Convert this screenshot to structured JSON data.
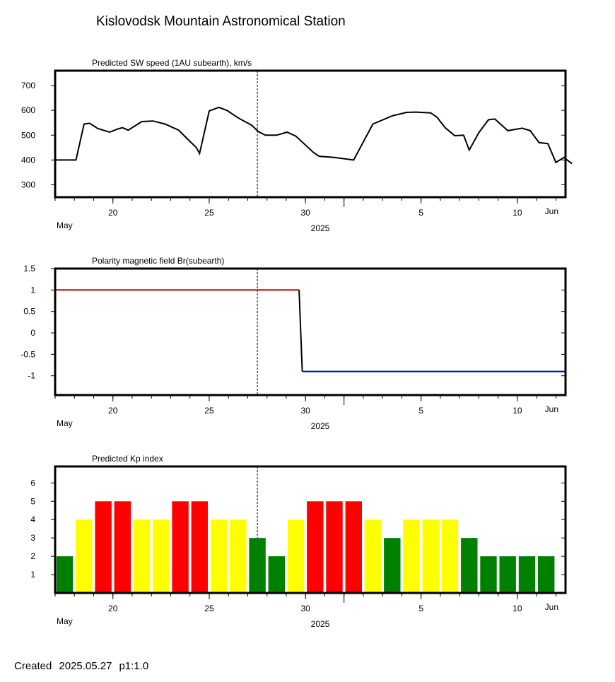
{
  "title": "Kislovodsk Mountain Astronomical Station",
  "footer": {
    "created_label": "Created",
    "created_date": "2025.05.27",
    "page": "p1:1.0"
  },
  "x_axis": {
    "date_range": [
      "2025-05-17",
      "2025-06-12"
    ],
    "ticks": [
      {
        "date": "2025-05-20",
        "label": "20"
      },
      {
        "date": "2025-05-25",
        "label": "25"
      },
      {
        "date": "2025-05-30",
        "label": "30"
      },
      {
        "date": "2025-06-05",
        "label": "5"
      },
      {
        "date": "2025-06-10",
        "label": "10"
      }
    ],
    "left_month": "May",
    "right_month": "Jun",
    "year": "2025",
    "now_marker": "2025-05-27T12:00"
  },
  "chart_data": [
    {
      "type": "line",
      "title": "Predicted SW speed (1AU subearth), km/s",
      "ylim": [
        250,
        760
      ],
      "yticks": [
        300,
        400,
        500,
        600,
        700
      ],
      "color": "#000000",
      "x": [
        "2025-05-17T00:00",
        "2025-05-18T02:00",
        "2025-05-18T12:00",
        "2025-05-18T19:00",
        "2025-05-19T05:00",
        "2025-05-19T14:00",
        "2025-05-19T20:00",
        "2025-05-20T06:00",
        "2025-05-20T12:00",
        "2025-05-20T19:00",
        "2025-05-21T12:00",
        "2025-05-22T02:00",
        "2025-05-22T17:00",
        "2025-05-23T10:00",
        "2025-05-23T23:00",
        "2025-05-24T08:00",
        "2025-05-24T12:00",
        "2025-05-25T00:00",
        "2025-05-25T12:00",
        "2025-05-25T22:00",
        "2025-05-26T12:00",
        "2025-05-27T05:00",
        "2025-05-27T13:00",
        "2025-05-27T22:00",
        "2025-05-28T12:00",
        "2025-05-29T01:00",
        "2025-05-29T12:00",
        "2025-05-30T00:00",
        "2025-05-30T10:00",
        "2025-05-30T17:00",
        "2025-05-31T12:00",
        "2025-06-01T12:00",
        "2025-06-02T12:00",
        "2025-06-03T12:00",
        "2025-06-04T06:00",
        "2025-06-04T18:00",
        "2025-06-05T12:00",
        "2025-06-05T20:00",
        "2025-06-06T06:00",
        "2025-06-06T18:00",
        "2025-06-07T05:00",
        "2025-06-07T12:00",
        "2025-06-08T00:00",
        "2025-06-08T12:00",
        "2025-06-08T20:00",
        "2025-06-09T12:00",
        "2025-06-10T06:00",
        "2025-06-10T16:00",
        "2025-06-11T03:00",
        "2025-06-11T14:00",
        "2025-06-12T00:00",
        "2025-06-12T10:00",
        "2025-06-12T20:00"
      ],
      "values": [
        400,
        400,
        545,
        548,
        527,
        518,
        512,
        525,
        530,
        520,
        555,
        557,
        545,
        520,
        478,
        450,
        426,
        598,
        612,
        600,
        570,
        540,
        515,
        500,
        500,
        512,
        496,
        460,
        430,
        415,
        410,
        400,
        545,
        578,
        592,
        593,
        590,
        572,
        530,
        498,
        500,
        440,
        510,
        562,
        565,
        518,
        528,
        518,
        470,
        466,
        390,
        410,
        385
      ]
    },
    {
      "type": "line",
      "title": "Polarity magnetic field  Br(subearth)",
      "ylim": [
        -1.45,
        1.5
      ],
      "yticks": [
        1.5,
        1,
        0.5,
        0,
        -0.5,
        -1
      ],
      "ytick_labels": [
        "1.5",
        "1",
        "0.5",
        "0",
        "-0.5",
        "-1"
      ],
      "series": [
        {
          "color": "#d40000",
          "x": [
            "2025-05-17T00:00",
            "2025-05-29T16:00"
          ],
          "values": [
            1,
            1
          ]
        },
        {
          "color": "#000000",
          "x": [
            "2025-05-29T16:00",
            "2025-05-29T20:00"
          ],
          "values": [
            1,
            -0.9
          ]
        },
        {
          "color": "#0000cc",
          "x": [
            "2025-05-29T20:00",
            "2025-06-12T12:00"
          ],
          "values": [
            -0.9,
            -0.9
          ]
        }
      ]
    },
    {
      "type": "bar",
      "title": "Predicted Kp index",
      "ylim": [
        0,
        6.9
      ],
      "yticks": [
        1,
        2,
        3,
        4,
        5,
        6
      ],
      "x": [
        "2025-05-17T12:00",
        "2025-05-18T12:00",
        "2025-05-19T12:00",
        "2025-05-20T12:00",
        "2025-05-21T12:00",
        "2025-05-22T12:00",
        "2025-05-23T12:00",
        "2025-05-24T12:00",
        "2025-05-25T12:00",
        "2025-05-26T12:00",
        "2025-05-27T12:00",
        "2025-05-28T12:00",
        "2025-05-29T12:00",
        "2025-05-30T12:00",
        "2025-05-31T12:00",
        "2025-06-01T12:00",
        "2025-06-02T12:00",
        "2025-06-03T12:00",
        "2025-06-04T12:00",
        "2025-06-05T12:00",
        "2025-06-06T12:00",
        "2025-06-07T12:00",
        "2025-06-08T12:00",
        "2025-06-09T12:00",
        "2025-06-10T12:00",
        "2025-06-11T12:00"
      ],
      "values": [
        2,
        4,
        5,
        5,
        4,
        4,
        5,
        5,
        4,
        4,
        3,
        2,
        4,
        5,
        5,
        5,
        4,
        3,
        4,
        4,
        4,
        3,
        2,
        2,
        2,
        2
      ],
      "colors": {
        "low": "#008000",
        "moderate": "#ffff00",
        "high": "#ff0000"
      }
    }
  ]
}
